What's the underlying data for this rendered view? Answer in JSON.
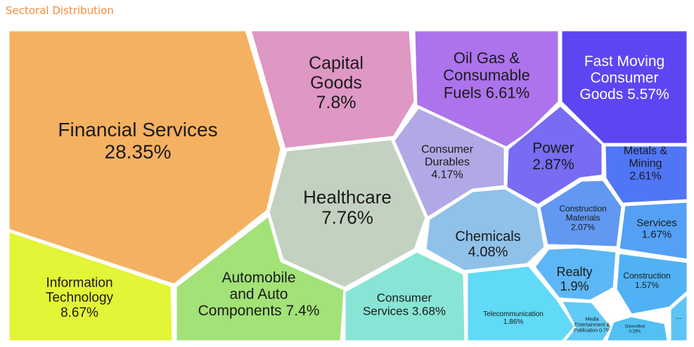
{
  "title": "Sectoral Distribution",
  "chart_data": {
    "type": "voronoi-treemap",
    "unit": "%",
    "sectors": [
      {
        "name": "Financial Services",
        "value": 28.35,
        "color": "#f2a040"
      },
      {
        "name": "Information Technology",
        "value": 8.67,
        "color": "#dff20a"
      },
      {
        "name": "Capital Goods",
        "value": 7.8,
        "color": "#d880b8"
      },
      {
        "name": "Healthcare",
        "value": 7.76,
        "color": "#b6c9b3"
      },
      {
        "name": "Automobile and Auto Components",
        "value": 7.4,
        "color": "#8edc5a"
      },
      {
        "name": "Oil Gas & Consumable Fuels",
        "value": 6.61,
        "color": "#9a55e8"
      },
      {
        "name": "Fast Moving Consumer Goods",
        "value": 5.57,
        "color": "#3a1ef0"
      },
      {
        "name": "Consumer Durables",
        "value": 4.17,
        "color": "#9f96e0"
      },
      {
        "name": "Chemicals",
        "value": 4.08,
        "color": "#78b4e4"
      },
      {
        "name": "Consumer Services",
        "value": 3.68,
        "color": "#6ee0cc"
      },
      {
        "name": "Power",
        "value": 2.87,
        "color": "#5a4cf0"
      },
      {
        "name": "Metals & Mining",
        "value": 2.61,
        "color": "#2a58f4"
      },
      {
        "name": "Construction Materials",
        "value": 2.07,
        "color": "#3f82ee"
      },
      {
        "name": "Realty",
        "value": 1.9,
        "color": "#3aa8f4"
      },
      {
        "name": "Telecommunication",
        "value": 1.86,
        "color": "#3ed2f4"
      },
      {
        "name": "Services",
        "value": 1.67,
        "color": "#2f8cf4"
      },
      {
        "name": "Construction",
        "value": 1.57,
        "color": "#2aa2f2"
      },
      {
        "name": "Media Entertainment & Publication",
        "value": 0.7,
        "color": "#3ec0f4"
      },
      {
        "name": "Diversified",
        "value": 0.29,
        "color": "#2cb2f0"
      },
      {
        "name": "...",
        "value": null,
        "color": "#3ab8f4"
      }
    ]
  }
}
